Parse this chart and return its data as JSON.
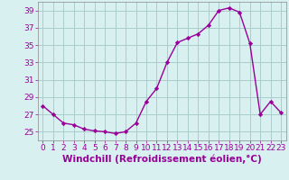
{
  "x": [
    0,
    1,
    2,
    3,
    4,
    5,
    6,
    7,
    8,
    9,
    10,
    11,
    12,
    13,
    14,
    15,
    16,
    17,
    18,
    19,
    20,
    21,
    22,
    23
  ],
  "y": [
    28.0,
    27.0,
    26.0,
    25.8,
    25.3,
    25.1,
    25.0,
    24.8,
    25.0,
    26.0,
    28.5,
    30.0,
    33.0,
    35.3,
    35.8,
    36.3,
    37.3,
    39.0,
    39.3,
    38.8,
    35.2,
    27.0,
    28.5,
    27.2
  ],
  "line_color": "#990099",
  "marker": "D",
  "marker_size": 2.2,
  "bg_color": "#d8f0f0",
  "grid_color": "#aacccc",
  "xlabel": "Windchill (Refroidissement éolien,°C)",
  "xlabel_color": "#990099",
  "tick_color": "#990099",
  "ylim": [
    24,
    40
  ],
  "yticks": [
    25,
    27,
    29,
    31,
    33,
    35,
    37,
    39
  ],
  "xlim": [
    -0.5,
    23.5
  ],
  "xticks": [
    0,
    1,
    2,
    3,
    4,
    5,
    6,
    7,
    8,
    9,
    10,
    11,
    12,
    13,
    14,
    15,
    16,
    17,
    18,
    19,
    20,
    21,
    22,
    23
  ],
  "tick_fontsize": 6.5,
  "xlabel_fontsize": 7.5,
  "linewidth": 1.0
}
